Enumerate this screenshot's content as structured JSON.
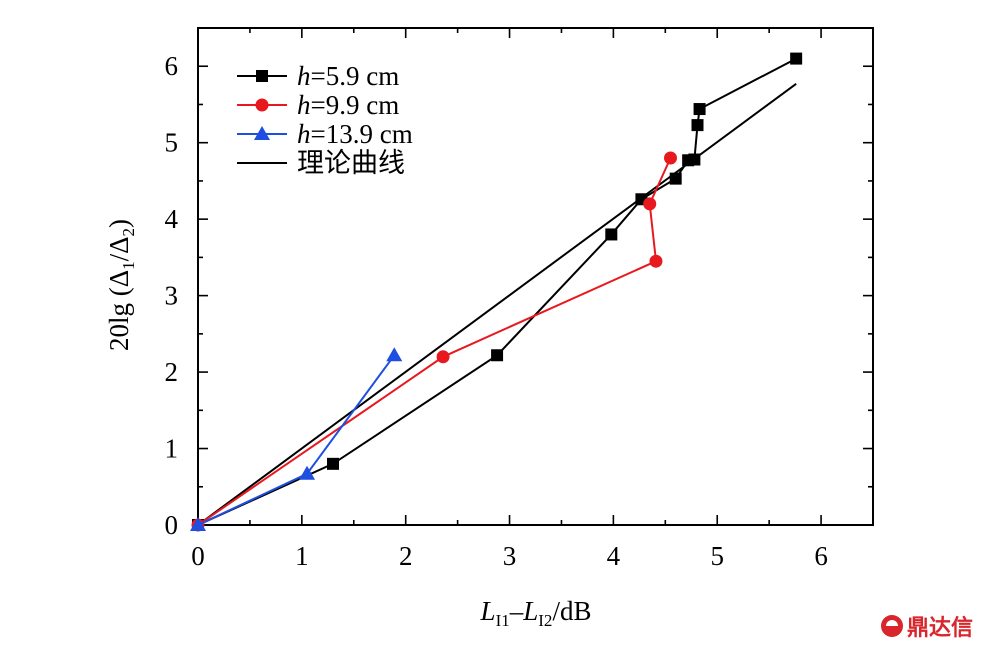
{
  "chart_data": {
    "type": "line",
    "xlabel_main": "L",
    "xlabel_sub1": "I1",
    "xlabel_dash": "–",
    "xlabel_sub2": "I2",
    "xlabel_unit": "/dB",
    "ylabel_pre": "20lg (Δ",
    "ylabel_sub1": "1",
    "ylabel_mid": "/Δ",
    "ylabel_sub2": "2",
    "ylabel_post": ")",
    "xlim": [
      0,
      6.5
    ],
    "ylim": [
      0,
      6.5
    ],
    "xticks": [
      0,
      1,
      2,
      3,
      4,
      5,
      6
    ],
    "yticks": [
      0,
      1,
      2,
      3,
      4,
      5,
      6
    ],
    "grid": false,
    "legend_position": "top-left",
    "series": [
      {
        "name": "h=5.9 cm",
        "name_italic": "h",
        "name_rest": "=5.9 cm",
        "color": "#000000",
        "marker": "square",
        "points": [
          [
            0,
            0
          ],
          [
            1.3,
            0.8
          ],
          [
            2.88,
            2.22
          ],
          [
            3.98,
            3.8
          ],
          [
            4.27,
            4.26
          ],
          [
            4.6,
            4.53
          ],
          [
            4.72,
            4.77
          ],
          [
            4.78,
            4.78
          ],
          [
            4.81,
            5.23
          ],
          [
            4.83,
            5.44
          ],
          [
            5.76,
            6.1
          ]
        ]
      },
      {
        "name": "h=9.9 cm",
        "name_italic": "h",
        "name_rest": "=9.9 cm",
        "color": "#e8191e",
        "marker": "circle",
        "points": [
          [
            0,
            0
          ],
          [
            2.36,
            2.2
          ],
          [
            4.41,
            3.45
          ],
          [
            4.35,
            4.2
          ],
          [
            4.55,
            4.8
          ]
        ]
      },
      {
        "name": "h=13.9 cm",
        "name_italic": "h",
        "name_rest": "=13.9 cm",
        "color": "#1e4fe0",
        "marker": "triangle",
        "points": [
          [
            0,
            0
          ],
          [
            1.05,
            0.67
          ],
          [
            1.89,
            2.22
          ]
        ]
      },
      {
        "name": "理论曲线",
        "color": "#000000",
        "marker": "none",
        "points": [
          [
            0,
            0
          ],
          [
            5.76,
            5.77
          ]
        ]
      }
    ]
  },
  "watermark": {
    "text": "鼎达信"
  }
}
